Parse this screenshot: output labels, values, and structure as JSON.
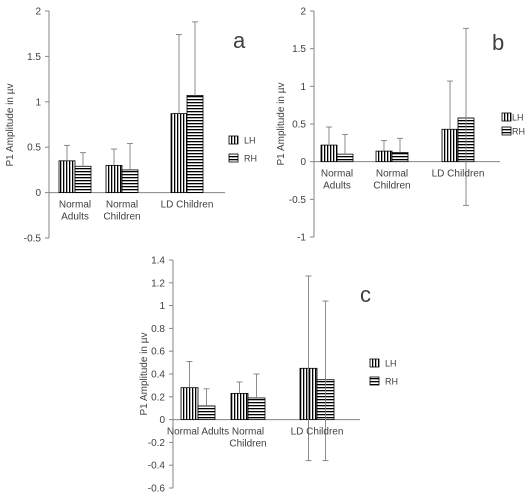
{
  "colors": {
    "axis": "#868686",
    "bar_stroke": "#000000",
    "bar_fill": "#ffffff",
    "error_bar": "#7f7f7f",
    "text": "#404040"
  },
  "patterns": {
    "LH": "vertical-stripes",
    "RH": "horizontal-stripes"
  },
  "chart_data": [
    {
      "type": "bar",
      "panel_label": "a",
      "ylabel": "P1 Amplitude in µv",
      "ylim": [
        -0.5,
        2
      ],
      "yticks": [
        "2",
        "1.5",
        "1",
        "0.5",
        "0",
        "-0.5"
      ],
      "ytick_values": [
        2,
        1.5,
        1,
        0.5,
        0,
        -0.5
      ],
      "categories": [
        "Normal Adults",
        "Normal Children",
        "LD Children"
      ],
      "category_lines": [
        [
          "Normal",
          "Adults"
        ],
        [
          "Normal",
          "Children"
        ],
        [
          "LD Children"
        ]
      ],
      "legend": [
        "LH",
        "RH"
      ],
      "series": [
        {
          "name": "LH",
          "values": [
            0.35,
            0.3,
            0.87
          ],
          "error_hi": [
            0.52,
            0.48,
            1.74
          ],
          "error_lo": [
            0.35,
            0.3,
            0.87
          ]
        },
        {
          "name": "RH",
          "values": [
            0.29,
            0.25,
            1.07
          ],
          "error_hi": [
            0.44,
            0.54,
            1.88
          ],
          "error_lo": [
            0.29,
            0.25,
            1.07
          ]
        }
      ],
      "grid": false,
      "legend_position": "right"
    },
    {
      "type": "bar",
      "panel_label": "b",
      "ylabel": "P1 Amplitude in µv",
      "ylim": [
        -1,
        2
      ],
      "yticks": [
        "2",
        "1.5",
        "1",
        "0.5",
        "0",
        "-0.5",
        "-1"
      ],
      "ytick_values": [
        2,
        1.5,
        1,
        0.5,
        0,
        -0.5,
        -1
      ],
      "categories": [
        "Normal Adults",
        "Normal Children",
        "LD Children"
      ],
      "category_lines": [
        [
          "Normal",
          "Adults"
        ],
        [
          "Normal",
          "Children"
        ],
        [
          "LD Children"
        ]
      ],
      "legend": [
        "LH",
        "RH"
      ],
      "series": [
        {
          "name": "LH",
          "values": [
            0.22,
            0.14,
            0.43
          ],
          "error_hi": [
            0.46,
            0.28,
            1.07
          ],
          "error_lo": [
            0.22,
            0.14,
            0.43
          ]
        },
        {
          "name": "RH",
          "values": [
            0.1,
            0.12,
            0.58
          ],
          "error_hi": [
            0.36,
            0.31,
            1.77
          ],
          "error_lo": [
            0.1,
            0.12,
            -0.58
          ]
        }
      ],
      "grid": false,
      "legend_position": "right"
    },
    {
      "type": "bar",
      "panel_label": "c",
      "ylabel": "P1 Amplitude in µv",
      "ylim": [
        -0.6,
        1.4
      ],
      "yticks": [
        "1.4",
        "1.2",
        "1",
        "0.8",
        "0.6",
        "0.4",
        "0.2",
        "0",
        "-0.2",
        "-0.4",
        "-0.6"
      ],
      "ytick_values": [
        1.4,
        1.2,
        1,
        0.8,
        0.6,
        0.4,
        0.2,
        0,
        -0.2,
        -0.4,
        -0.6
      ],
      "categories": [
        "Normal Adults",
        "Normal Children",
        "LD Children"
      ],
      "category_lines": [
        [
          "Normal Adults"
        ],
        [
          "Normal",
          "Children"
        ],
        [
          "LD Children"
        ]
      ],
      "legend": [
        "LH",
        "RH"
      ],
      "series": [
        {
          "name": "LH",
          "values": [
            0.28,
            0.23,
            0.45
          ],
          "error_hi": [
            0.51,
            0.33,
            1.26
          ],
          "error_lo": [
            0.28,
            0.23,
            -0.36
          ]
        },
        {
          "name": "RH",
          "values": [
            0.12,
            0.19,
            0.35
          ],
          "error_hi": [
            0.27,
            0.4,
            1.04
          ],
          "error_lo": [
            0.12,
            0.19,
            -0.36
          ]
        }
      ],
      "grid": false,
      "legend_position": "right"
    }
  ]
}
